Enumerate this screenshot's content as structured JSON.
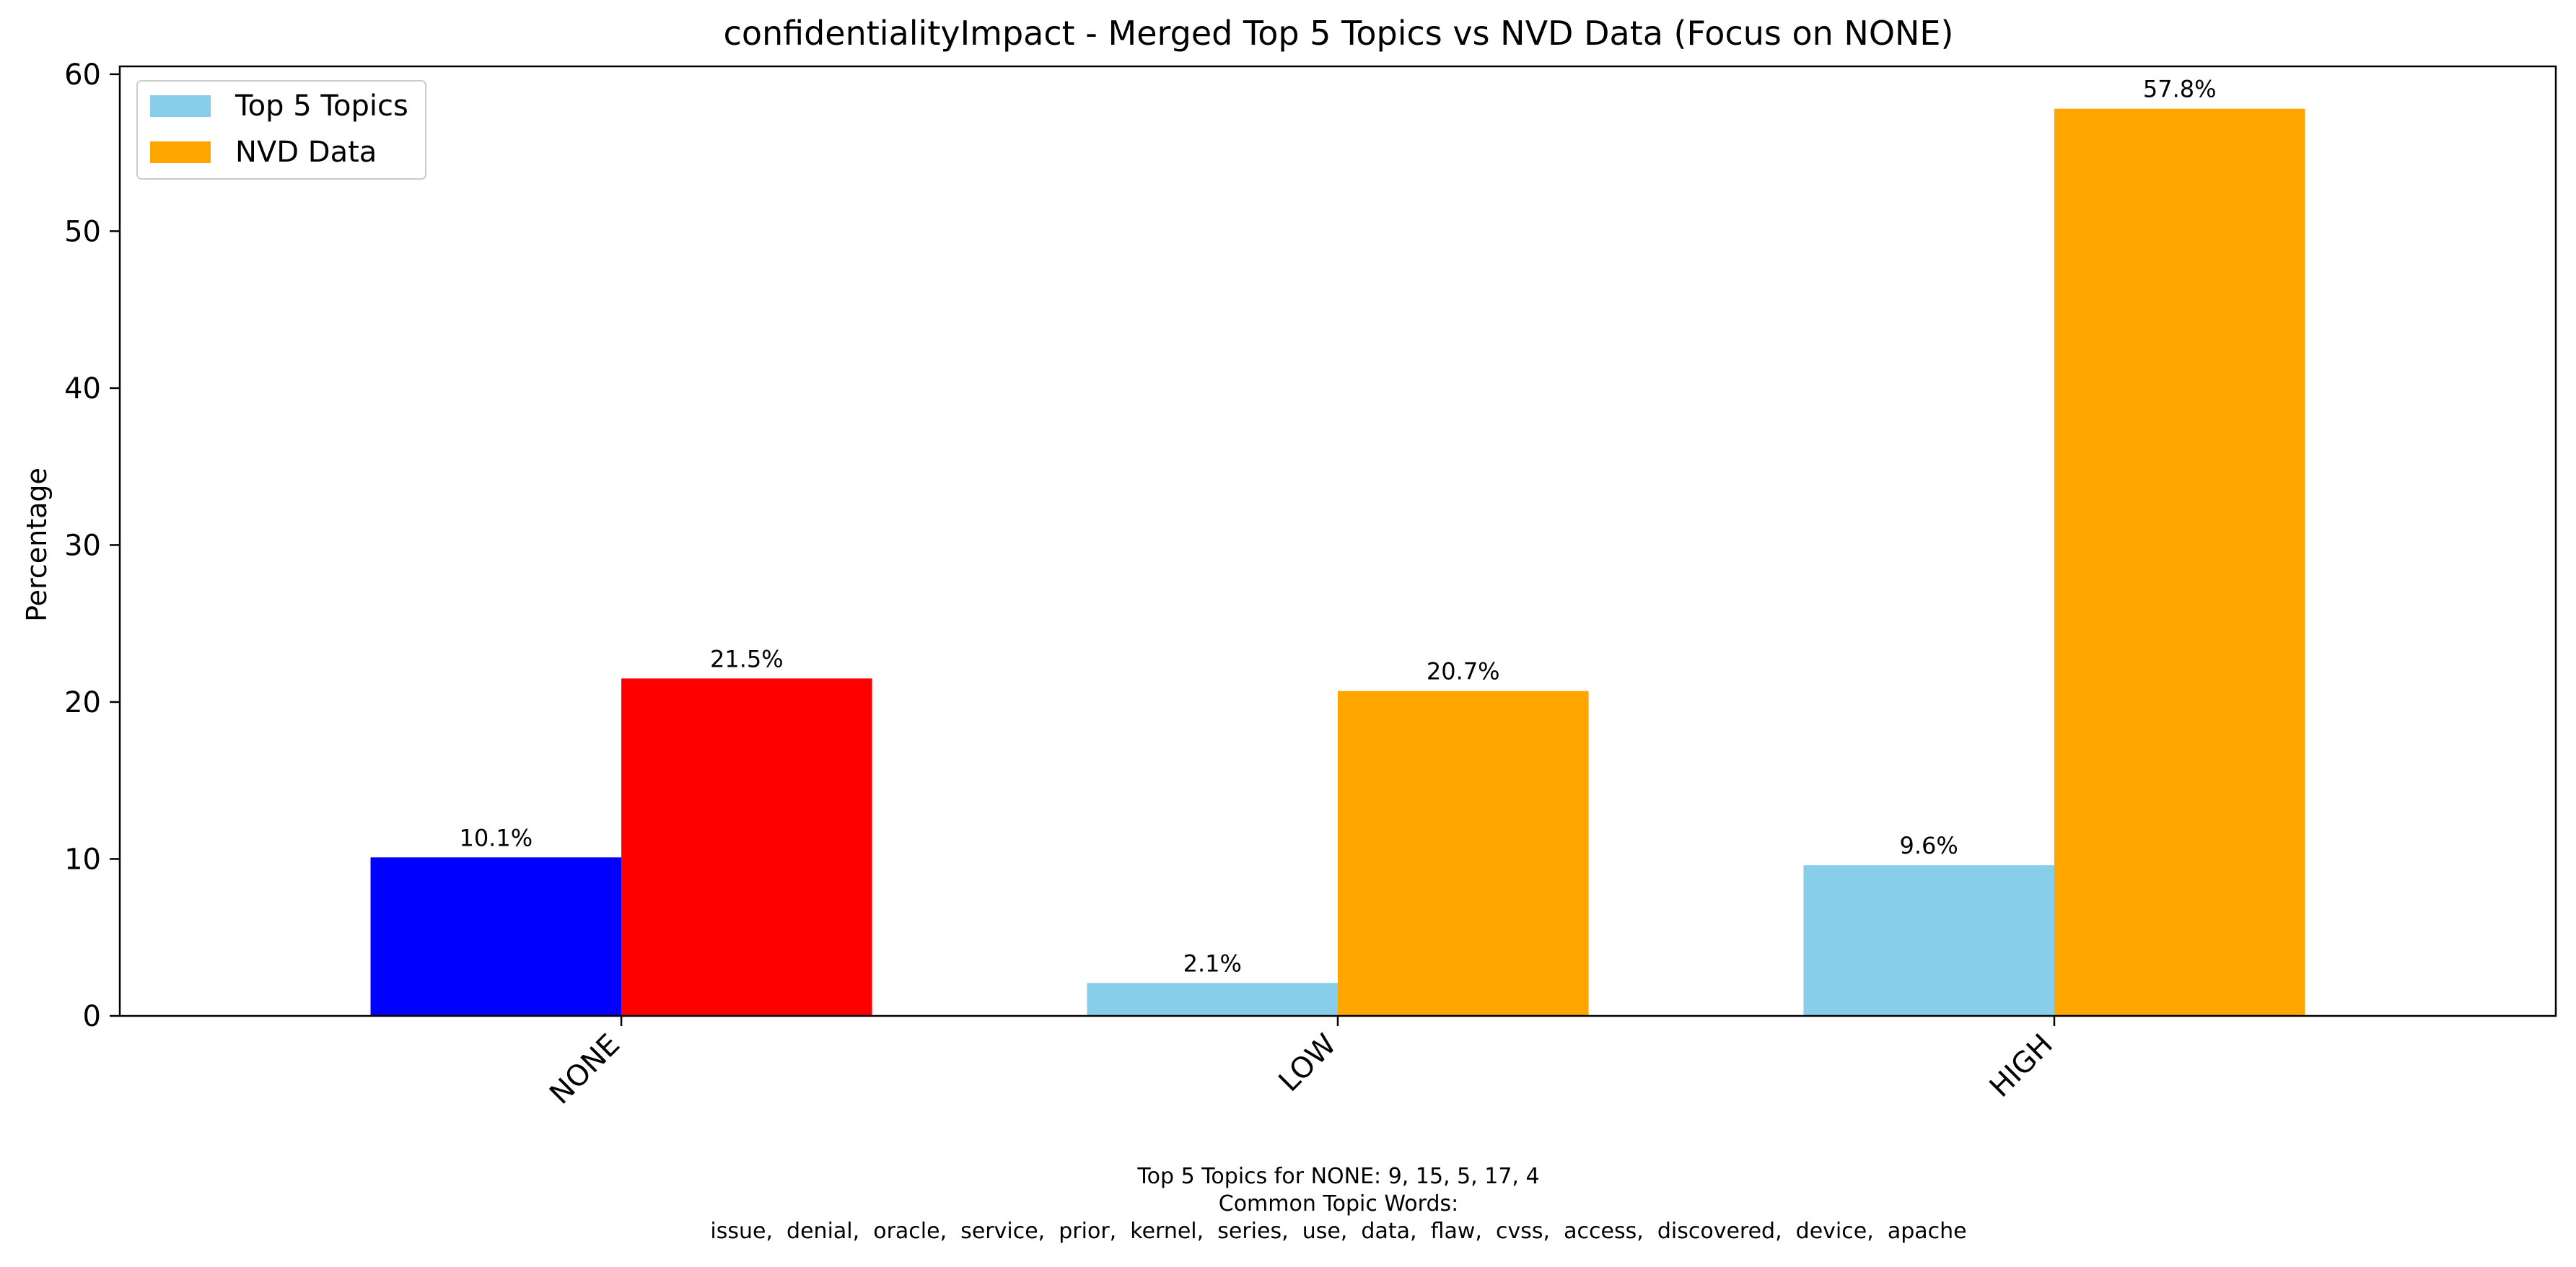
{
  "chart_data": {
    "type": "bar",
    "title": "confidentialityImpact - Merged Top 5 Topics vs NVD Data (Focus on NONE)",
    "xlabel": "",
    "ylabel": "Percentage",
    "categories": [
      "NONE",
      "LOW",
      "HIGH"
    ],
    "ylim": [
      0,
      60.5
    ],
    "yticks": [
      0,
      10,
      20,
      30,
      40,
      50,
      60
    ],
    "grid": false,
    "legend_position": "top-left",
    "series": [
      {
        "name": "Top 5 Topics",
        "color": "#87CEEB",
        "values": [
          10.1,
          2.1,
          9.6
        ],
        "point_colors": [
          "#0000FF",
          "#87CEEB",
          "#87CEEB"
        ],
        "value_labels": [
          "10.1%",
          "2.1%",
          "9.6%"
        ]
      },
      {
        "name": "NVD Data",
        "color": "#FFA500",
        "values": [
          21.5,
          20.7,
          57.8
        ],
        "point_colors": [
          "#FF0000",
          "#FFA500",
          "#FFA500"
        ],
        "value_labels": [
          "21.5%",
          "20.7%",
          "57.8%"
        ]
      }
    ],
    "footnote": [
      "Top 5 Topics for NONE: 9, 15, 5, 17, 4",
      "Common Topic Words:",
      "issue,  denial,  oracle,  service,  prior,  kernel,  series,  use,  data,  flaw,  cvss,  access,  discovered,  device,  apache"
    ]
  }
}
